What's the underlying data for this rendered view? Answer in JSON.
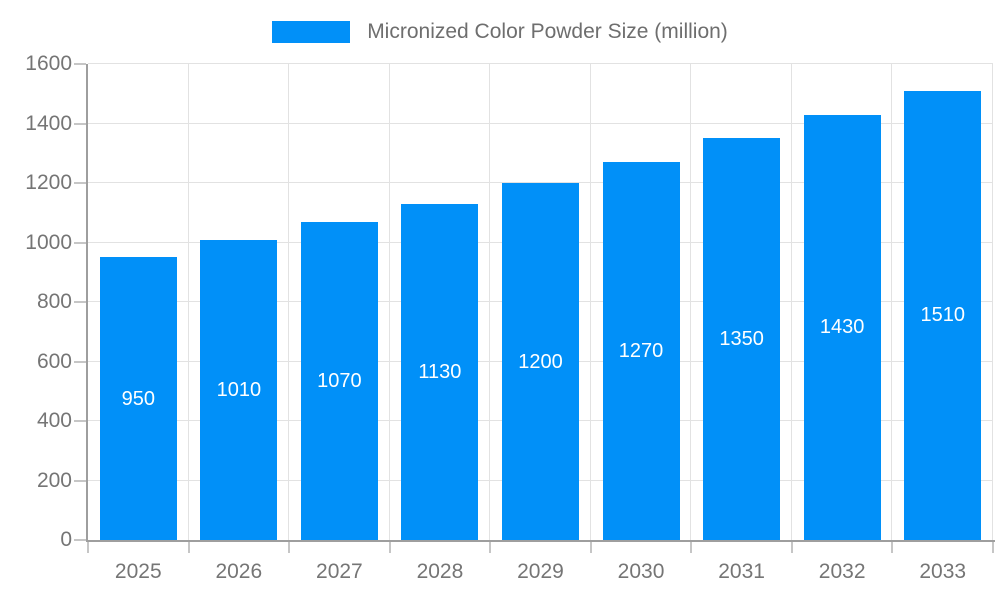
{
  "legend": {
    "label": "Micronized Color Powder Size (million)",
    "swatch_color": "#0190f8"
  },
  "chart_data": {
    "type": "bar",
    "title": "Micronized Color Powder Size (million)",
    "categories": [
      "2025",
      "2026",
      "2027",
      "2028",
      "2029",
      "2030",
      "2031",
      "2032",
      "2033"
    ],
    "values": [
      950,
      1010,
      1070,
      1130,
      1200,
      1270,
      1350,
      1430,
      1510
    ],
    "value_labels": [
      "950",
      "1010",
      "1070",
      "1130",
      "1200",
      "1270",
      "1350",
      "1430",
      "1510"
    ],
    "yticks": [
      0,
      200,
      400,
      600,
      800,
      1000,
      1200,
      1400,
      1600
    ],
    "ylim": [
      0,
      1600
    ],
    "xlabel": "",
    "ylabel": "",
    "grid": true,
    "legend_position": "top",
    "colors": {
      "bar": "#0190f8",
      "value_label": "#ffffff",
      "axis_line": "#9e9e9e",
      "gridline": "#e2e2e2",
      "tick": "#c6c6c6",
      "axis_text": "#757575",
      "legend_text": "#6e6e6e",
      "background": "#ffffff"
    }
  }
}
